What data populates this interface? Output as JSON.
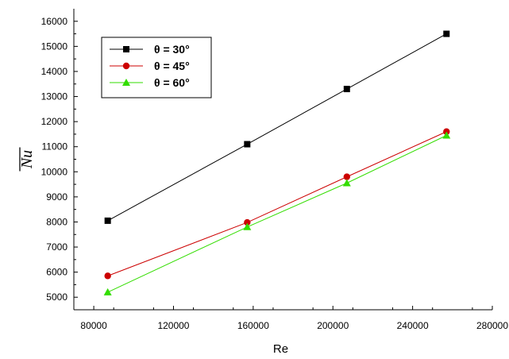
{
  "chart_data": {
    "type": "line",
    "title": "",
    "xlabel": "Re",
    "ylabel": "Nu",
    "ylabel_overline": true,
    "xlim": [
      70000,
      280000
    ],
    "ylim": [
      4500,
      16500
    ],
    "xticks": [
      80000,
      120000,
      160000,
      200000,
      240000,
      280000
    ],
    "xtick_labels": [
      "80000",
      "120000",
      "160000",
      "200000",
      "240000",
      "280000"
    ],
    "yticks": [
      5000,
      6000,
      7000,
      8000,
      9000,
      10000,
      11000,
      12000,
      13000,
      14000,
      15000,
      16000
    ],
    "ytick_labels": [
      "5000",
      "6000",
      "7000",
      "8000",
      "9000",
      "10000",
      "11000",
      "12000",
      "13000",
      "14000",
      "15000",
      "16000"
    ],
    "grid": false,
    "legend_position": "top-left",
    "series": [
      {
        "name": "θ = 30°",
        "color": "#000000",
        "marker": "square",
        "x": [
          87000,
          157000,
          207000,
          257000
        ],
        "y": [
          8050,
          11100,
          13300,
          15500
        ]
      },
      {
        "name": "θ = 45°",
        "color": "#cc0000",
        "marker": "circle",
        "x": [
          87000,
          157000,
          207000,
          257000
        ],
        "y": [
          5850,
          7980,
          9800,
          11600
        ]
      },
      {
        "name": "θ = 60°",
        "color": "#33dd00",
        "marker": "triangle",
        "x": [
          87000,
          157000,
          207000,
          257000
        ],
        "y": [
          5200,
          7800,
          9550,
          11450
        ]
      }
    ]
  }
}
